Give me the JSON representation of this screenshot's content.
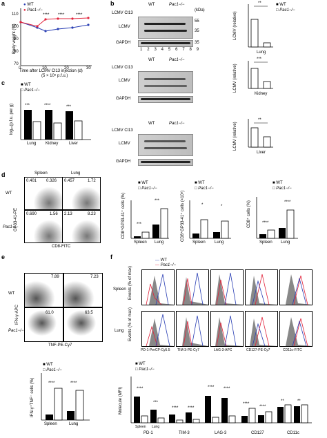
{
  "panels": {
    "a": "a",
    "b": "b",
    "c": "c",
    "d": "d",
    "e": "e",
    "f": "f"
  },
  "legend": {
    "wt": "WT",
    "pac": "Pac1−/−"
  },
  "a": {
    "ylabel": "Body weight (%)",
    "xlabel1": "Time after LCMV Cl13 injection (d)",
    "xlabel2": "(5 × 10⁵ p.f.u.)",
    "xticks": [
      "0",
      "10",
      "20",
      "30"
    ],
    "yticks": [
      "70",
      "80",
      "90",
      "100",
      "110"
    ],
    "stars": [
      "****",
      "****",
      "****"
    ]
  },
  "b": {
    "lcmv_head": "LCMV Cl13",
    "signs": [
      "–",
      "+",
      "+",
      "+",
      "+",
      "–",
      "+",
      "+",
      "+"
    ],
    "wt": "WT",
    "pac": "Pac1−/−",
    "kda": "(kDa)",
    "lcmv": "LCMV",
    "gapdh": "GAPDH",
    "mw": [
      "55",
      "35",
      "35"
    ],
    "lanes": [
      "1",
      "2",
      "3",
      "4",
      "5",
      "6",
      "7",
      "8",
      "9"
    ],
    "organs": [
      "Lung",
      "Kidney",
      "Liver"
    ],
    "ylabel": "LCMV (relative)",
    "stars": [
      "**",
      "***",
      "**"
    ]
  },
  "c": {
    "ylabel": "log₁₀(p.f.u. per g)",
    "groups": [
      "Lung",
      "Kidney",
      "Liver"
    ],
    "stars": [
      "***",
      "****",
      "***"
    ]
  },
  "d": {
    "spleen": "Spleen",
    "lung": "Lung",
    "row_wt": "WT",
    "row_pac": "Pac1−/−",
    "q_wt_spleen_ul": "0.401",
    "q_wt_spleen_ur": "0.326",
    "q_wt_lung_ul": "0.457",
    "q_wt_lung_ur": "1.72",
    "q_pac_spleen_ul": "0.690",
    "q_pac_spleen_ur": "1.56",
    "q_pac_lung_ul": "2.13",
    "q_pac_lung_ur": "8.23",
    "xlabel": "CD8-FITC",
    "ylabel": "GP33-41-PE",
    "chart1_y": "CD8⁺GP33-41⁺ cells (%)",
    "chart2_y": "CD8⁺GP33-41⁺ cells (×10⁵)",
    "chart3_y": "CD8⁺ cells (%)",
    "groups": [
      "Spleen",
      "Lung"
    ],
    "stars": [
      "***",
      "***",
      "*",
      "*",
      "****",
      "****"
    ]
  },
  "e": {
    "row_wt": "WT",
    "row_pac": "Pac1−/−",
    "v1": "7.89",
    "v2": "7.23",
    "v3": "61.0",
    "v4": "63.5",
    "xlabel": "TNF-PE-Cy7",
    "ylabel": "IFN-γ-APC",
    "chart_y": "IFN-γ⁺TNF⁻ cells (%)",
    "groups": [
      "Spleen",
      "Lung"
    ],
    "stars": [
      "****",
      "****"
    ]
  },
  "f": {
    "row1": "Spleen",
    "row2": "Lung",
    "ylabel": "Events (% of max)",
    "markers": [
      "PD-1-PerCP-Cy5.5",
      "TIM-3-PE-Cy7",
      "LAG-3-APC",
      "CD127-PE-Cy7",
      "CD11c-FITC"
    ],
    "chart_y": "Molecule (MFI)",
    "groups": [
      "PD-1",
      "TIM-3",
      "LAG-3",
      "CD127",
      "CD11c"
    ],
    "sub": [
      "Spleen",
      "Lung"
    ],
    "stars": [
      "****",
      "***",
      "****",
      "****",
      "****",
      "****",
      "****",
      "****",
      "**",
      "**"
    ]
  },
  "chart_data": [
    {
      "type": "line",
      "panel": "a",
      "x": [
        0,
        7,
        10,
        14,
        20,
        28
      ],
      "series": [
        {
          "name": "WT",
          "values": [
            100,
            90,
            87,
            88,
            90,
            92
          ]
        },
        {
          "name": "Pac1−/−",
          "values": [
            100,
            97,
            104,
            105,
            105,
            106
          ]
        }
      ],
      "xlabel": "Time after LCMV Cl13 injection (d)",
      "ylabel": "Body weight (%)",
      "ylim": [
        70,
        110
      ]
    },
    {
      "type": "bar",
      "panel": "b-lung",
      "categories": [
        "WT",
        "Pac1−/−"
      ],
      "values": [
        5.0,
        0.8
      ],
      "ylabel": "LCMV (relative)",
      "ylim": [
        0,
        8
      ]
    },
    {
      "type": "bar",
      "panel": "b-kidney",
      "categories": [
        "WT",
        "Pac1−/−"
      ],
      "values": [
        1.7,
        1.1
      ],
      "ylabel": "LCMV (relative)",
      "ylim": [
        0,
        2.0
      ]
    },
    {
      "type": "bar",
      "panel": "b-liver",
      "categories": [
        "WT",
        "Pac1−/−"
      ],
      "values": [
        2.0,
        1.3
      ],
      "ylabel": "LCMV (relative)",
      "ylim": [
        0,
        2.5
      ]
    },
    {
      "type": "bar",
      "panel": "c",
      "categories": [
        "Lung",
        "Kidney",
        "Liver"
      ],
      "series": [
        {
          "name": "WT",
          "values": [
            5.8,
            5.8,
            5.6
          ]
        },
        {
          "name": "Pac1−/−",
          "values": [
            3.5,
            3.3,
            3.6
          ]
        }
      ],
      "ylabel": "log10(p.f.u. per g)",
      "ylim": [
        0,
        7
      ]
    },
    {
      "type": "bar",
      "panel": "d1",
      "categories": [
        "Spleen",
        "Lung"
      ],
      "series": [
        {
          "name": "WT",
          "values": [
            0.4,
            2.2
          ]
        },
        {
          "name": "Pac1−/−",
          "values": [
            1.0,
            4.6
          ]
        }
      ],
      "ylabel": "CD8+GP33-41+ cells (%)",
      "ylim": [
        0,
        6
      ]
    },
    {
      "type": "bar",
      "panel": "d2",
      "categories": [
        "Spleen",
        "Lung"
      ],
      "series": [
        {
          "name": "WT",
          "values": [
            0.5,
            0.7
          ]
        },
        {
          "name": "Pac1−/−",
          "values": [
            2.2,
            2.0
          ]
        }
      ],
      "ylabel": "CD8+GP33-41+ cells (x10^5)",
      "ylim": [
        0,
        4
      ]
    },
    {
      "type": "bar",
      "panel": "d3",
      "categories": [
        "Spleen",
        "Lung"
      ],
      "series": [
        {
          "name": "WT",
          "values": [
            6,
            16
          ]
        },
        {
          "name": "Pac1−/−",
          "values": [
            12,
            40
          ]
        }
      ],
      "ylabel": "CD8+ cells (%)",
      "ylim": [
        0,
        60
      ]
    },
    {
      "type": "bar",
      "panel": "e",
      "categories": [
        "Spleen",
        "Lung"
      ],
      "series": [
        {
          "name": "WT",
          "values": [
            10,
            16
          ]
        },
        {
          "name": "Pac1−/−",
          "values": [
            60,
            56
          ]
        }
      ],
      "ylabel": "IFN-γ+TNF− cells (%)",
      "ylim": [
        0,
        80
      ]
    },
    {
      "type": "bar",
      "panel": "f",
      "categories": [
        "PD-1 Spleen",
        "PD-1 Lung",
        "TIM-3 Spleen",
        "TIM-3 Lung",
        "LAG-3 Spleen",
        "LAG-3 Lung",
        "CD127 Spleen",
        "CD127 Lung",
        "CD11c Spleen",
        "CD11c Lung"
      ],
      "series": [
        {
          "name": "WT",
          "values": [
            5600,
            2800,
            1900,
            2300,
            5800,
            5300,
            1500,
            1600,
            3400,
            3600
          ]
        },
        {
          "name": "Pac1−/−",
          "values": [
            1500,
            1000,
            600,
            700,
            1200,
            1500,
            3100,
            2300,
            3800,
            3900
          ]
        }
      ],
      "ylabel": "Molecule (MFI)",
      "ylim": [
        0,
        10000
      ]
    }
  ]
}
